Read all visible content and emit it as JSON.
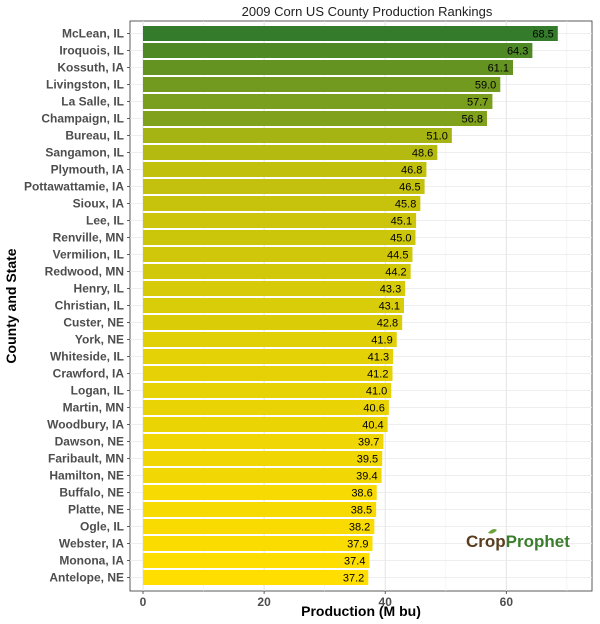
{
  "chart_data": {
    "type": "bar",
    "orientation": "horizontal",
    "title": "2009 Corn US County Production Rankings",
    "xlabel": "Production (M bu)",
    "ylabel": "County and State",
    "xlim": [
      0,
      72
    ],
    "xticks": [
      0,
      20,
      40,
      60
    ],
    "grid": true,
    "categories": [
      "McLean, IL",
      "Iroquois, IL",
      "Kossuth, IA",
      "Livingston, IL",
      "La Salle, IL",
      "Champaign, IL",
      "Bureau, IL",
      "Sangamon, IL",
      "Plymouth, IA",
      "Pottawattamie, IA",
      "Sioux, IA",
      "Lee, IL",
      "Renville, MN",
      "Vermilion, IL",
      "Redwood, MN",
      "Henry, IL",
      "Christian, IL",
      "Custer, NE",
      "York, NE",
      "Whiteside, IL",
      "Crawford, IA",
      "Logan, IL",
      "Martin, MN",
      "Woodbury, IA",
      "Dawson, NE",
      "Faribault, MN",
      "Hamilton, NE",
      "Buffalo, NE",
      "Platte, NE",
      "Ogle, IL",
      "Webster, IA",
      "Monona, IA",
      "Antelope, NE"
    ],
    "values": [
      68.5,
      64.3,
      61.1,
      59.0,
      57.7,
      56.8,
      51.0,
      48.6,
      46.8,
      46.5,
      45.8,
      45.1,
      45.0,
      44.5,
      44.2,
      43.3,
      43.1,
      42.8,
      41.9,
      41.3,
      41.2,
      41.0,
      40.6,
      40.4,
      39.7,
      39.5,
      39.4,
      38.6,
      38.5,
      38.2,
      37.9,
      37.4,
      37.2
    ],
    "value_labels": [
      "68.5",
      "64.3",
      "61.1",
      "59.0",
      "57.7",
      "56.8",
      "51.0",
      "48.6",
      "46.8",
      "46.5",
      "45.8",
      "45.1",
      "45.0",
      "44.5",
      "44.2",
      "43.3",
      "43.1",
      "42.8",
      "41.9",
      "41.3",
      "41.2",
      "41.0",
      "40.6",
      "40.4",
      "39.7",
      "39.5",
      "39.4",
      "38.6",
      "38.5",
      "38.2",
      "37.9",
      "37.4",
      "37.2"
    ],
    "color_scale": {
      "low": "#ffde00",
      "high": "#347c2c"
    }
  },
  "logo": {
    "part1": "Crop",
    "part2": "Prophet",
    "leaf_color": "#6aa33c"
  }
}
